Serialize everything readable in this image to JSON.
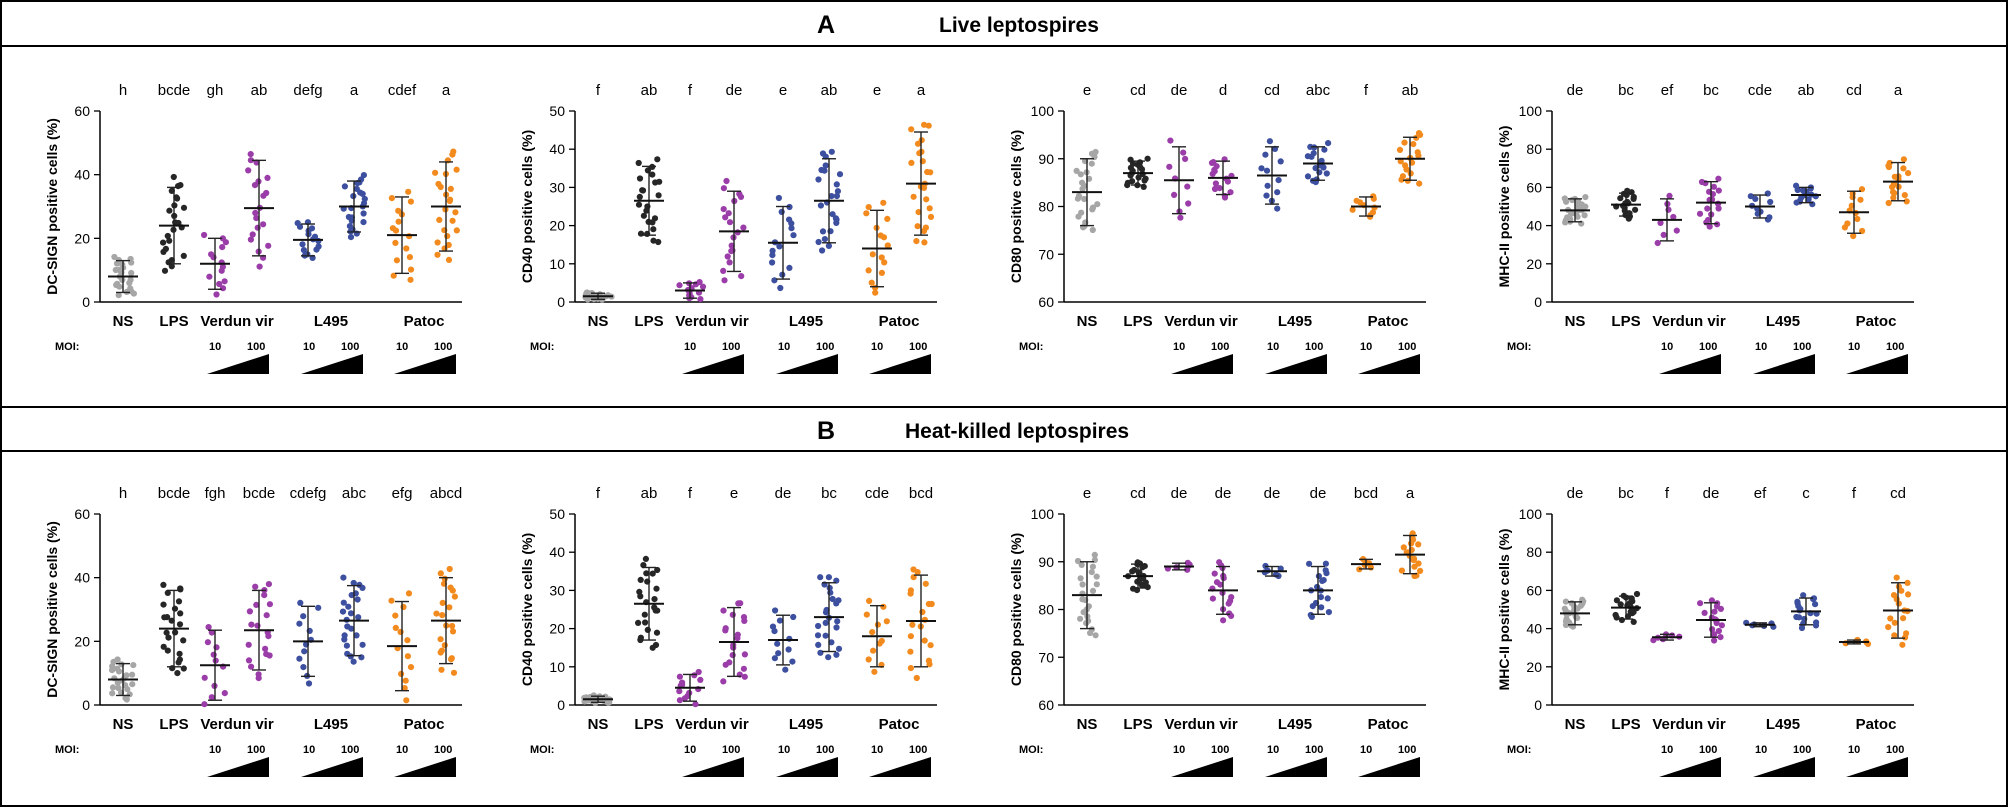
{
  "panel_a": {
    "letter": "A",
    "title": "Live leptospires"
  },
  "panel_b": {
    "letter": "B",
    "title": "Heat-killed leptospires"
  },
  "colors": {
    "NS": "#a6a6a6",
    "LPS": "#262626",
    "Verdun vir": "#9a3da8",
    "L495": "#3d4f9f",
    "Patoc": "#f28a1e"
  },
  "moi_label": "MOI:",
  "moi_low": "10",
  "moi_high": "100",
  "chart_data": [
    {
      "id": "A-DCSIGN",
      "type": "scatter",
      "ylabel": "DC-SIGN positive cells (%)",
      "ylim": [
        0,
        60
      ],
      "yticks": [
        0,
        20,
        40,
        60
      ],
      "categories": [
        "NS",
        "LPS",
        "Verdun vir",
        "L495",
        "Patoc"
      ],
      "groups": [
        {
          "name": "NS",
          "mean": 8,
          "sd": 5,
          "n": 24,
          "letter": "h"
        },
        {
          "name": "LPS",
          "mean": 24,
          "sd": 12,
          "n": 24,
          "letter": "bcde"
        },
        {
          "name": "Verdun vir 10",
          "mean": 12,
          "sd": 8,
          "n": 14,
          "letter": "gh"
        },
        {
          "name": "Verdun vir 100",
          "mean": 29.5,
          "sd": 15,
          "n": 20,
          "letter": "ab"
        },
        {
          "name": "L495 10",
          "mean": 19.5,
          "sd": 5,
          "n": 16,
          "letter": "defg"
        },
        {
          "name": "L495 100",
          "mean": 30,
          "sd": 8,
          "n": 24,
          "letter": "a"
        },
        {
          "name": "Patoc 10",
          "mean": 21,
          "sd": 12,
          "n": 16,
          "letter": "cdef"
        },
        {
          "name": "Patoc 100",
          "mean": 30,
          "sd": 14,
          "n": 24,
          "letter": "a"
        }
      ]
    },
    {
      "id": "A-CD40",
      "type": "scatter",
      "ylabel": "CD40 positive cells (%)",
      "ylim": [
        0,
        50
      ],
      "yticks": [
        0,
        10,
        20,
        30,
        40,
        50
      ],
      "categories": [
        "NS",
        "LPS",
        "Verdun vir",
        "L495",
        "Patoc"
      ],
      "groups": [
        {
          "name": "NS",
          "mean": 1.5,
          "sd": 0.8,
          "n": 24,
          "letter": "f"
        },
        {
          "name": "LPS",
          "mean": 26.5,
          "sd": 9,
          "n": 24,
          "letter": "ab"
        },
        {
          "name": "Verdun vir 10",
          "mean": 3,
          "sd": 2,
          "n": 14,
          "letter": "f"
        },
        {
          "name": "Verdun vir 100",
          "mean": 18.5,
          "sd": 10.5,
          "n": 20,
          "letter": "de"
        },
        {
          "name": "L495 10",
          "mean": 15.5,
          "sd": 9.5,
          "n": 16,
          "letter": "e"
        },
        {
          "name": "L495 100",
          "mean": 26.5,
          "sd": 11,
          "n": 24,
          "letter": "ab"
        },
        {
          "name": "Patoc 10",
          "mean": 14,
          "sd": 10,
          "n": 16,
          "letter": "e"
        },
        {
          "name": "Patoc 100",
          "mean": 31,
          "sd": 13.5,
          "n": 24,
          "letter": "a"
        }
      ]
    },
    {
      "id": "A-CD80",
      "type": "scatter",
      "ylabel": "CD80 positive cells (%)",
      "ylim": [
        60,
        100
      ],
      "yticks": [
        60,
        70,
        80,
        90,
        100
      ],
      "categories": [
        "NS",
        "LPS",
        "Verdun vir",
        "L495",
        "Patoc"
      ],
      "groups": [
        {
          "name": "NS",
          "mean": 83,
          "sd": 7,
          "n": 24,
          "letter": "e"
        },
        {
          "name": "LPS",
          "mean": 87,
          "sd": 2.5,
          "n": 20,
          "letter": "cd"
        },
        {
          "name": "Verdun vir 10",
          "mean": 85.5,
          "sd": 7,
          "n": 10,
          "letter": "de"
        },
        {
          "name": "Verdun vir 100",
          "mean": 86,
          "sd": 3.5,
          "n": 16,
          "letter": "d"
        },
        {
          "name": "L495 10",
          "mean": 86.5,
          "sd": 6,
          "n": 12,
          "letter": "cd"
        },
        {
          "name": "L495 100",
          "mean": 89,
          "sd": 3.5,
          "n": 18,
          "letter": "abc"
        },
        {
          "name": "Patoc 10",
          "mean": 80,
          "sd": 2,
          "n": 10,
          "letter": "f"
        },
        {
          "name": "Patoc 100",
          "mean": 90,
          "sd": 4.5,
          "n": 18,
          "letter": "ab"
        }
      ]
    },
    {
      "id": "A-MHCII",
      "type": "scatter",
      "ylabel": "MHC-II positive cells (%)",
      "ylim": [
        0,
        100
      ],
      "yticks": [
        0,
        20,
        40,
        60,
        80,
        100
      ],
      "categories": [
        "NS",
        "LPS",
        "Verdun vir",
        "L495",
        "Patoc"
      ],
      "groups": [
        {
          "name": "NS",
          "mean": 48,
          "sd": 6,
          "n": 24,
          "letter": "de"
        },
        {
          "name": "LPS",
          "mean": 51,
          "sd": 6,
          "n": 20,
          "letter": "bc"
        },
        {
          "name": "Verdun vir 10",
          "mean": 43,
          "sd": 11,
          "n": 8,
          "letter": "ef"
        },
        {
          "name": "Verdun vir 100",
          "mean": 52,
          "sd": 11,
          "n": 18,
          "letter": "bc"
        },
        {
          "name": "L495 10",
          "mean": 50,
          "sd": 6,
          "n": 10,
          "letter": "cde"
        },
        {
          "name": "L495 100",
          "mean": 56,
          "sd": 4,
          "n": 16,
          "letter": "ab"
        },
        {
          "name": "Patoc 10",
          "mean": 47,
          "sd": 11,
          "n": 12,
          "letter": "cd"
        },
        {
          "name": "Patoc 100",
          "mean": 63,
          "sd": 10,
          "n": 18,
          "letter": "a"
        }
      ]
    },
    {
      "id": "B-DCSIGN",
      "type": "scatter",
      "ylabel": "DC-SIGN positive cells (%)",
      "ylim": [
        0,
        60
      ],
      "yticks": [
        0,
        20,
        40,
        60
      ],
      "categories": [
        "NS",
        "LPS",
        "Verdun vir",
        "L495",
        "Patoc"
      ],
      "groups": [
        {
          "name": "NS",
          "mean": 8,
          "sd": 5,
          "n": 24,
          "letter": "h"
        },
        {
          "name": "LPS",
          "mean": 24,
          "sd": 12,
          "n": 24,
          "letter": "bcde"
        },
        {
          "name": "Verdun vir 10",
          "mean": 12.5,
          "sd": 11,
          "n": 12,
          "letter": "fgh"
        },
        {
          "name": "Verdun vir 100",
          "mean": 23.5,
          "sd": 12.5,
          "n": 20,
          "letter": "bcde"
        },
        {
          "name": "L495 10",
          "mean": 20,
          "sd": 11,
          "n": 12,
          "letter": "cdefg"
        },
        {
          "name": "L495 100",
          "mean": 26.5,
          "sd": 11,
          "n": 24,
          "letter": "abc"
        },
        {
          "name": "Patoc 10",
          "mean": 18.5,
          "sd": 14,
          "n": 14,
          "letter": "efg"
        },
        {
          "name": "Patoc 100",
          "mean": 26.5,
          "sd": 13.5,
          "n": 22,
          "letter": "abcd"
        }
      ]
    },
    {
      "id": "B-CD40",
      "type": "scatter",
      "ylabel": "CD40 positive cells (%)",
      "ylim": [
        0,
        50
      ],
      "yticks": [
        0,
        10,
        20,
        30,
        40,
        50
      ],
      "categories": [
        "NS",
        "LPS",
        "Verdun vir",
        "L495",
        "Patoc"
      ],
      "groups": [
        {
          "name": "NS",
          "mean": 1.5,
          "sd": 0.8,
          "n": 24,
          "letter": "f"
        },
        {
          "name": "LPS",
          "mean": 26.5,
          "sd": 9.5,
          "n": 24,
          "letter": "ab"
        },
        {
          "name": "Verdun vir 10",
          "mean": 4.5,
          "sd": 3.5,
          "n": 14,
          "letter": "f"
        },
        {
          "name": "Verdun vir 100",
          "mean": 16.5,
          "sd": 9,
          "n": 20,
          "letter": "e"
        },
        {
          "name": "L495 10",
          "mean": 17,
          "sd": 6.5,
          "n": 12,
          "letter": "de"
        },
        {
          "name": "L495 100",
          "mean": 23,
          "sd": 9,
          "n": 24,
          "letter": "bc"
        },
        {
          "name": "Patoc 10",
          "mean": 18,
          "sd": 8,
          "n": 12,
          "letter": "cde"
        },
        {
          "name": "Patoc 100",
          "mean": 22,
          "sd": 12,
          "n": 20,
          "letter": "bcd"
        }
      ]
    },
    {
      "id": "B-CD80",
      "type": "scatter",
      "ylabel": "CD80 positive cells (%)",
      "ylim": [
        60,
        100
      ],
      "yticks": [
        60,
        70,
        80,
        90,
        100
      ],
      "categories": [
        "NS",
        "LPS",
        "Verdun vir",
        "L495",
        "Patoc"
      ],
      "groups": [
        {
          "name": "NS",
          "mean": 83,
          "sd": 7,
          "n": 24,
          "letter": "e"
        },
        {
          "name": "LPS",
          "mean": 87,
          "sd": 2.5,
          "n": 20,
          "letter": "cd"
        },
        {
          "name": "Verdun vir 10",
          "mean": 89,
          "sd": 0.7,
          "n": 6,
          "letter": "de"
        },
        {
          "name": "Verdun vir 100",
          "mean": 84,
          "sd": 5,
          "n": 18,
          "letter": "de"
        },
        {
          "name": "L495 10",
          "mean": 88,
          "sd": 1,
          "n": 6,
          "letter": "de"
        },
        {
          "name": "L495 100",
          "mean": 84,
          "sd": 5,
          "n": 18,
          "letter": "de"
        },
        {
          "name": "Patoc 10",
          "mean": 89.5,
          "sd": 1,
          "n": 6,
          "letter": "bcd"
        },
        {
          "name": "Patoc 100",
          "mean": 91.5,
          "sd": 4,
          "n": 18,
          "letter": "a"
        }
      ]
    },
    {
      "id": "B-MHCII",
      "type": "scatter",
      "ylabel": "MHC-II positive cells (%)",
      "ylim": [
        0,
        100
      ],
      "yticks": [
        0,
        20,
        40,
        60,
        80,
        100
      ],
      "categories": [
        "NS",
        "LPS",
        "Verdun vir",
        "L495",
        "Patoc"
      ],
      "groups": [
        {
          "name": "NS",
          "mean": 48,
          "sd": 6,
          "n": 24,
          "letter": "de"
        },
        {
          "name": "LPS",
          "mean": 51,
          "sd": 6,
          "n": 20,
          "letter": "bc"
        },
        {
          "name": "Verdun vir 10",
          "mean": 35.5,
          "sd": 1.5,
          "n": 6,
          "letter": "f"
        },
        {
          "name": "Verdun vir 100",
          "mean": 44.5,
          "sd": 9,
          "n": 18,
          "letter": "de"
        },
        {
          "name": "L495 10",
          "mean": 42,
          "sd": 1,
          "n": 6,
          "letter": "ef"
        },
        {
          "name": "L495 100",
          "mean": 49,
          "sd": 7,
          "n": 18,
          "letter": "c"
        },
        {
          "name": "Patoc 10",
          "mean": 33,
          "sd": 1,
          "n": 6,
          "letter": "f"
        },
        {
          "name": "Patoc 100",
          "mean": 49.5,
          "sd": 14.5,
          "n": 18,
          "letter": "cd"
        }
      ]
    }
  ]
}
